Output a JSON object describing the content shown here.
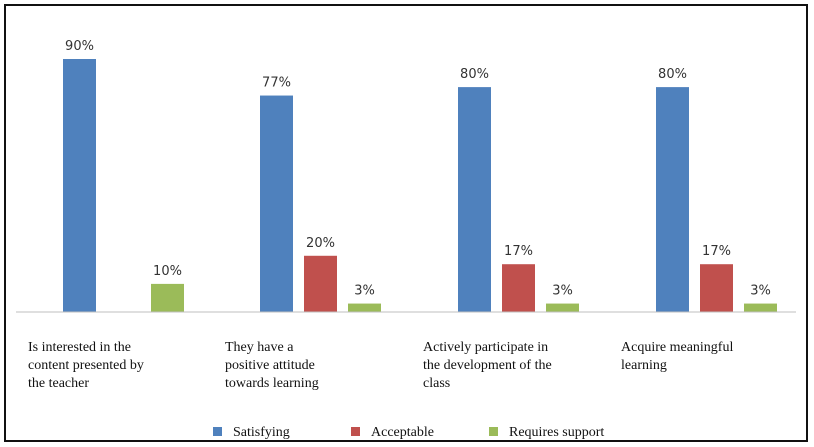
{
  "chart_data": {
    "type": "bar",
    "categories": [
      [
        "Is interested in the",
        "content presented by",
        "the teacher"
      ],
      [
        "They have a",
        "positive attitude",
        "towards learning"
      ],
      [
        "Actively participate in",
        "the development of the",
        "class"
      ],
      [
        "Acquire meaningful",
        "learning"
      ]
    ],
    "series": [
      {
        "name": "Satisfying",
        "color": "#4F81BD",
        "values": [
          90,
          77,
          80,
          80
        ],
        "labels": [
          "90%",
          "77%",
          "80%",
          "80%"
        ]
      },
      {
        "name": "Acceptable",
        "color": "#C0504D",
        "values": [
          null,
          20,
          17,
          17
        ],
        "labels": [
          "",
          "20%",
          "17%",
          "17%"
        ]
      },
      {
        "name": "Requires support",
        "color": "#9BBB59",
        "values": [
          10,
          3,
          3,
          3
        ],
        "labels": [
          "10%",
          "3%",
          "3%",
          "3%"
        ]
      }
    ],
    "ylim": [
      0,
      90
    ],
    "grid": false,
    "legend_position": "bottom"
  }
}
